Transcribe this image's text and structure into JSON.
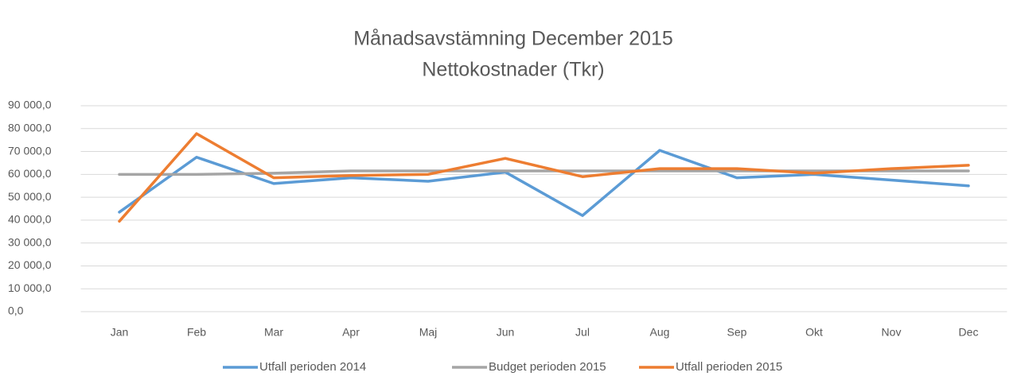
{
  "chart_data": {
    "type": "line",
    "title": "Månadsavstämning December 2015",
    "subtitle": "Nettokostnader (Tkr)",
    "categories": [
      "Jan",
      "Feb",
      "Mar",
      "Apr",
      "Maj",
      "Jun",
      "Jul",
      "Aug",
      "Sep",
      "Okt",
      "Nov",
      "Dec"
    ],
    "series": [
      {
        "name": "Utfall perioden 2014",
        "color": "#5b9bd5",
        "values": [
          43500,
          67500,
          56000,
          58500,
          57000,
          61000,
          42000,
          70500,
          58500,
          60000,
          57500,
          55000
        ]
      },
      {
        "name": "Budget perioden 2015",
        "color": "#a5a5a5",
        "values": [
          60000,
          60000,
          60500,
          61500,
          61500,
          61500,
          61500,
          61500,
          61500,
          61500,
          61500,
          61500
        ]
      },
      {
        "name": "Utfall perioden 2015",
        "color": "#ed7d31",
        "values": [
          39500,
          77800,
          58500,
          59500,
          60000,
          67000,
          59000,
          62500,
          62500,
          60500,
          62500,
          64000
        ]
      }
    ],
    "ylim": [
      0,
      90000
    ],
    "yticks": [
      {
        "value": 0,
        "label": "0,0"
      },
      {
        "value": 10000,
        "label": "10 000,0"
      },
      {
        "value": 20000,
        "label": "20 000,0"
      },
      {
        "value": 30000,
        "label": "30 000,0"
      },
      {
        "value": 40000,
        "label": "40 000,0"
      },
      {
        "value": 50000,
        "label": "50 000,0"
      },
      {
        "value": 60000,
        "label": "60 000,0"
      },
      {
        "value": 70000,
        "label": "70 000,0"
      },
      {
        "value": 80000,
        "label": "80 000,0"
      },
      {
        "value": 90000,
        "label": "90 000,0"
      }
    ],
    "grid": true,
    "legend": "bottom"
  }
}
